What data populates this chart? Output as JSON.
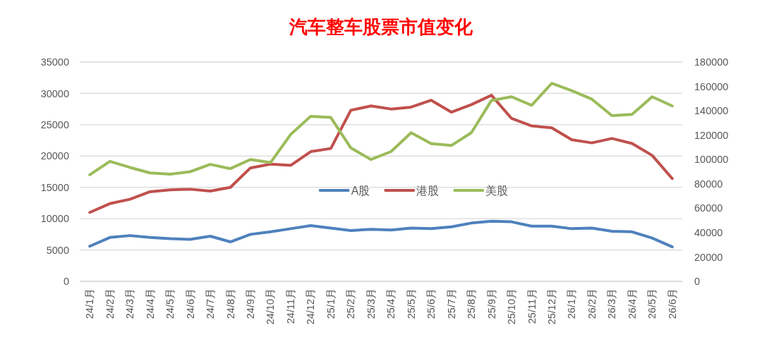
{
  "chart_data": {
    "type": "line",
    "title": "汽车整车股票市值变化",
    "categories": [
      "24/1月",
      "24/2月",
      "24/3月",
      "24/4月",
      "24/5月",
      "24/6月",
      "24/7月",
      "24/8月",
      "24/9月",
      "24/10月",
      "24/11月",
      "24/12月",
      "25/1月",
      "25/2月",
      "25/3月",
      "25/4月",
      "25/5月",
      "25/6月",
      "25/7月",
      "25/8月",
      "25/9月",
      "25/10月",
      "25/11月",
      "25/12月",
      "26/1月",
      "26/2月",
      "26/3月",
      "26/4月",
      "26/5月",
      "26/6月"
    ],
    "series": [
      {
        "name": "A股",
        "color": "#4f81bd",
        "values": [
          5600,
          7000,
          7300,
          7000,
          6800,
          6700,
          7200,
          6300,
          7500,
          7900,
          8400,
          8900,
          8500,
          8100,
          8300,
          8200,
          8500,
          8400,
          8700,
          9300,
          9600,
          9500,
          8800,
          8800,
          8400,
          8500,
          8000,
          7900,
          6900,
          5500
        ]
      },
      {
        "name": "港股",
        "color": "#c0504d",
        "values": [
          11000,
          12400,
          13100,
          14300,
          14600,
          14700,
          14400,
          15000,
          18100,
          18700,
          18500,
          20700,
          21200,
          27300,
          28000,
          27500,
          27800,
          28900,
          27000,
          28200,
          29700,
          26000,
          24800,
          24500,
          22600,
          22100,
          22800,
          22000,
          20100,
          16400
        ]
      },
      {
        "name": "美股",
        "color": "#9bbb59",
        "axis": "y2",
        "values": [
          87500,
          98500,
          93500,
          89000,
          88000,
          90000,
          96000,
          92500,
          100000,
          97500,
          120500,
          135500,
          134500,
          109500,
          100000,
          106500,
          122000,
          113000,
          111500,
          122000,
          148500,
          151500,
          144500,
          162500,
          156500,
          149500,
          136000,
          137000,
          151500,
          144000
        ]
      }
    ],
    "ylim": [
      0,
      35000
    ],
    "yticks": [
      0,
      5000,
      10000,
      15000,
      20000,
      25000,
      30000,
      35000
    ],
    "y2lim": [
      0,
      180000
    ],
    "y2ticks": [
      0,
      20000,
      40000,
      60000,
      80000,
      100000,
      120000,
      140000,
      160000,
      180000
    ],
    "grid": "y",
    "legend": "center"
  }
}
